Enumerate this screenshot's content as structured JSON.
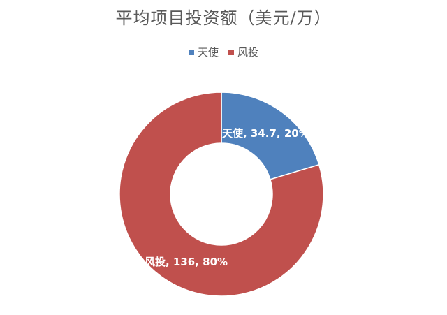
{
  "chart_data": {
    "type": "pie",
    "title": "平均项目投资额（美元/万）",
    "donut": true,
    "legend_position": "top",
    "categories": [
      "天使",
      "风投"
    ],
    "values": [
      34.7,
      136
    ],
    "percentages": [
      20,
      80
    ],
    "colors": [
      "#4f81bd",
      "#c0504d"
    ],
    "data_labels": [
      "天使, 34.7, 20%",
      "风投, 136, 80%"
    ]
  }
}
